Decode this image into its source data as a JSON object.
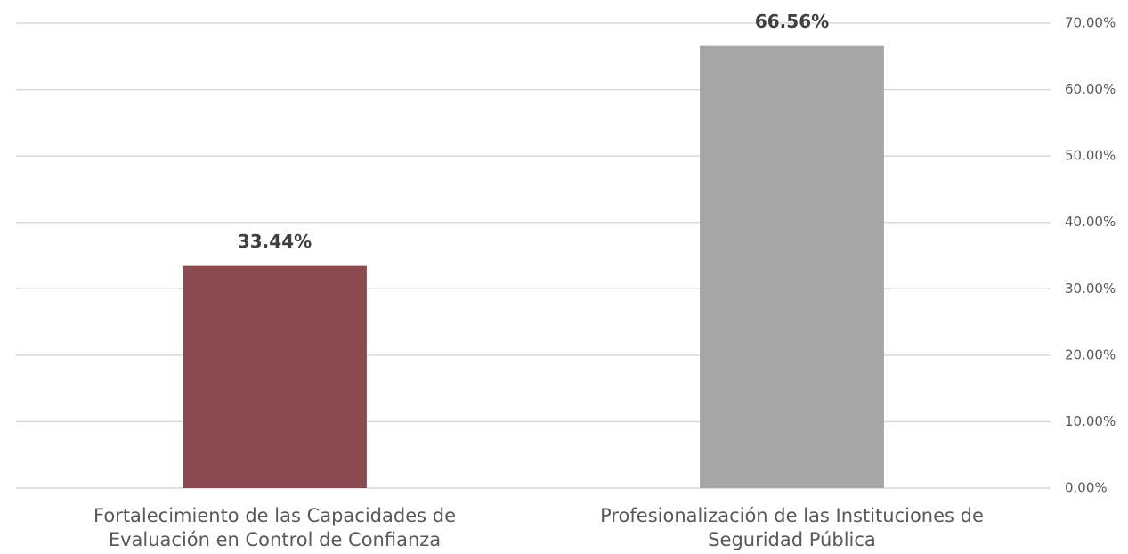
{
  "chart_data": {
    "type": "bar",
    "categories": [
      "Fortalecimiento de las Capacidades de Evaluación en Control de Confianza",
      "Profesionalización de las Instituciones de Seguridad Pública"
    ],
    "values": [
      33.44,
      66.56
    ],
    "value_labels": [
      "33.44%",
      "66.56%"
    ],
    "colors": [
      "#8b4b51",
      "#a6a6a6"
    ],
    "ylim": [
      0,
      70
    ],
    "yticks": [
      {
        "value": 0,
        "label": "0.00%"
      },
      {
        "value": 10,
        "label": "10.00%"
      },
      {
        "value": 20,
        "label": "20.00%"
      },
      {
        "value": 30,
        "label": "30.00%"
      },
      {
        "value": 40,
        "label": "40.00%"
      },
      {
        "value": 50,
        "label": "50.00%"
      },
      {
        "value": 60,
        "label": "60.00%"
      },
      {
        "value": 70,
        "label": "70.00%"
      }
    ],
    "y_axis_side": "right",
    "grid": true
  }
}
